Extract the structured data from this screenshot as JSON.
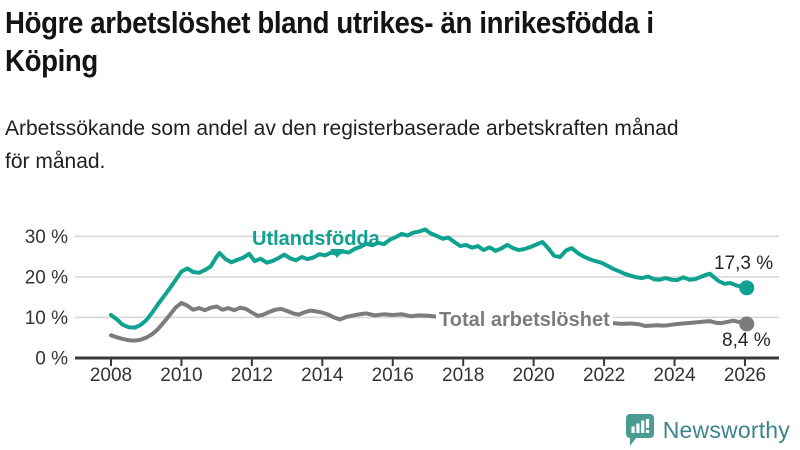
{
  "header": {
    "title_lines": [
      "Högre arbetslöshet bland utrikes- än inrikesfödda i",
      "Köping"
    ],
    "subtitle_lines": [
      "Arbetssökande som andel av den registerbaserade arbetskraften månad",
      "för månad."
    ]
  },
  "chart_data": {
    "type": "line",
    "title": "Högre arbetslöshet bland utrikes- än inrikesfödda i Köping",
    "subtitle": "Arbetssökande som andel av den registerbaserade arbetskraften månad för månad.",
    "xlabel": "",
    "ylabel": "",
    "grid": "horizontal",
    "x_axis": {
      "ticks": [
        2008,
        2010,
        2012,
        2014,
        2016,
        2018,
        2020,
        2022,
        2024,
        2026
      ],
      "range": [
        2008,
        2026.1
      ]
    },
    "y_axis": {
      "tick_values": [
        0,
        10,
        20,
        30
      ],
      "tick_labels": [
        "0 %",
        "10 %",
        "20 %",
        "30 %"
      ],
      "range": [
        0,
        33
      ],
      "unit": "%"
    },
    "series": [
      {
        "name": "Utlandsfödda",
        "color": "#10a291",
        "end_value": 17.3,
        "end_label": "17,3 %",
        "points": [
          [
            2008.0,
            10.6
          ],
          [
            2008.17,
            9.5
          ],
          [
            2008.33,
            8.2
          ],
          [
            2008.5,
            7.6
          ],
          [
            2008.67,
            7.5
          ],
          [
            2008.83,
            8.1
          ],
          [
            2009.0,
            9.3
          ],
          [
            2009.17,
            11.2
          ],
          [
            2009.33,
            13.2
          ],
          [
            2009.5,
            15.2
          ],
          [
            2009.67,
            17.2
          ],
          [
            2009.83,
            19.2
          ],
          [
            2010.0,
            21.3
          ],
          [
            2010.17,
            22.1
          ],
          [
            2010.33,
            21.2
          ],
          [
            2010.5,
            21.0
          ],
          [
            2010.67,
            21.7
          ],
          [
            2010.83,
            22.6
          ],
          [
            2011.0,
            25.0
          ],
          [
            2011.08,
            25.9
          ],
          [
            2011.25,
            24.4
          ],
          [
            2011.42,
            23.6
          ],
          [
            2011.58,
            24.2
          ],
          [
            2011.75,
            24.7
          ],
          [
            2011.92,
            25.7
          ],
          [
            2012.08,
            23.9
          ],
          [
            2012.25,
            24.5
          ],
          [
            2012.42,
            23.5
          ],
          [
            2012.58,
            23.9
          ],
          [
            2012.75,
            24.6
          ],
          [
            2012.92,
            25.5
          ],
          [
            2013.08,
            24.6
          ],
          [
            2013.25,
            24.1
          ],
          [
            2013.42,
            24.9
          ],
          [
            2013.58,
            24.4
          ],
          [
            2013.75,
            24.8
          ],
          [
            2013.92,
            25.6
          ],
          [
            2014.08,
            25.3
          ],
          [
            2014.25,
            26.0
          ],
          [
            2014.42,
            25.7
          ],
          [
            2014.58,
            26.3
          ],
          [
            2014.75,
            26.0
          ],
          [
            2014.92,
            26.9
          ],
          [
            2015.08,
            27.4
          ],
          [
            2015.25,
            28.2
          ],
          [
            2015.42,
            27.8
          ],
          [
            2015.58,
            28.4
          ],
          [
            2015.75,
            28.1
          ],
          [
            2015.92,
            29.2
          ],
          [
            2016.08,
            29.8
          ],
          [
            2016.25,
            30.6
          ],
          [
            2016.42,
            30.2
          ],
          [
            2016.58,
            30.9
          ],
          [
            2016.75,
            31.2
          ],
          [
            2016.92,
            31.7
          ],
          [
            2017.08,
            30.7
          ],
          [
            2017.25,
            30.1
          ],
          [
            2017.42,
            29.4
          ],
          [
            2017.58,
            29.7
          ],
          [
            2017.75,
            28.6
          ],
          [
            2017.92,
            27.6
          ],
          [
            2018.08,
            27.9
          ],
          [
            2018.25,
            27.2
          ],
          [
            2018.42,
            27.6
          ],
          [
            2018.58,
            26.6
          ],
          [
            2018.75,
            27.3
          ],
          [
            2018.92,
            26.4
          ],
          [
            2019.08,
            27.0
          ],
          [
            2019.25,
            27.9
          ],
          [
            2019.42,
            27.1
          ],
          [
            2019.58,
            26.6
          ],
          [
            2019.75,
            26.9
          ],
          [
            2019.92,
            27.4
          ],
          [
            2020.08,
            28.0
          ],
          [
            2020.25,
            28.6
          ],
          [
            2020.42,
            27.0
          ],
          [
            2020.58,
            25.2
          ],
          [
            2020.75,
            24.9
          ],
          [
            2020.92,
            26.5
          ],
          [
            2021.08,
            27.1
          ],
          [
            2021.25,
            25.9
          ],
          [
            2021.42,
            25.0
          ],
          [
            2021.58,
            24.4
          ],
          [
            2021.75,
            23.9
          ],
          [
            2021.92,
            23.5
          ],
          [
            2022.08,
            22.8
          ],
          [
            2022.25,
            22.0
          ],
          [
            2022.42,
            21.4
          ],
          [
            2022.58,
            20.8
          ],
          [
            2022.75,
            20.3
          ],
          [
            2022.92,
            19.9
          ],
          [
            2023.08,
            19.7
          ],
          [
            2023.25,
            20.1
          ],
          [
            2023.42,
            19.4
          ],
          [
            2023.58,
            19.3
          ],
          [
            2023.75,
            19.7
          ],
          [
            2023.92,
            19.3
          ],
          [
            2024.08,
            19.2
          ],
          [
            2024.25,
            19.9
          ],
          [
            2024.42,
            19.3
          ],
          [
            2024.58,
            19.4
          ],
          [
            2024.75,
            20.0
          ],
          [
            2024.92,
            20.6
          ],
          [
            2025.0,
            20.8
          ],
          [
            2025.08,
            20.2
          ],
          [
            2025.25,
            19.0
          ],
          [
            2025.42,
            18.3
          ],
          [
            2025.58,
            18.5
          ],
          [
            2025.75,
            17.9
          ],
          [
            2025.92,
            17.6
          ],
          [
            2026.05,
            17.3
          ]
        ]
      },
      {
        "name": "Total arbetslöshet",
        "color": "#7c7c7c",
        "end_value": 8.4,
        "end_label": "8,4 %",
        "points": [
          [
            2008.0,
            5.6
          ],
          [
            2008.17,
            5.1
          ],
          [
            2008.33,
            4.7
          ],
          [
            2008.5,
            4.4
          ],
          [
            2008.67,
            4.3
          ],
          [
            2008.83,
            4.5
          ],
          [
            2009.0,
            5.0
          ],
          [
            2009.17,
            5.9
          ],
          [
            2009.33,
            7.1
          ],
          [
            2009.5,
            8.8
          ],
          [
            2009.67,
            10.6
          ],
          [
            2009.83,
            12.4
          ],
          [
            2010.0,
            13.6
          ],
          [
            2010.17,
            12.9
          ],
          [
            2010.33,
            11.9
          ],
          [
            2010.5,
            12.3
          ],
          [
            2010.67,
            11.8
          ],
          [
            2010.83,
            12.4
          ],
          [
            2011.0,
            12.7
          ],
          [
            2011.17,
            11.9
          ],
          [
            2011.33,
            12.3
          ],
          [
            2011.5,
            11.8
          ],
          [
            2011.67,
            12.4
          ],
          [
            2011.83,
            12.1
          ],
          [
            2012.0,
            11.2
          ],
          [
            2012.17,
            10.4
          ],
          [
            2012.33,
            10.7
          ],
          [
            2012.5,
            11.4
          ],
          [
            2012.67,
            11.9
          ],
          [
            2012.83,
            12.1
          ],
          [
            2013.0,
            11.6
          ],
          [
            2013.17,
            11.0
          ],
          [
            2013.33,
            10.7
          ],
          [
            2013.5,
            11.3
          ],
          [
            2013.67,
            11.7
          ],
          [
            2013.83,
            11.5
          ],
          [
            2014.0,
            11.2
          ],
          [
            2014.17,
            10.7
          ],
          [
            2014.33,
            10.0
          ],
          [
            2014.5,
            9.5
          ],
          [
            2014.67,
            10.1
          ],
          [
            2014.83,
            10.4
          ],
          [
            2015.0,
            10.7
          ],
          [
            2015.25,
            11.0
          ],
          [
            2015.5,
            10.5
          ],
          [
            2015.75,
            10.8
          ],
          [
            2016.0,
            10.6
          ],
          [
            2016.25,
            10.8
          ],
          [
            2016.5,
            10.3
          ],
          [
            2016.75,
            10.5
          ],
          [
            2017.0,
            10.4
          ],
          [
            2017.25,
            10.2
          ],
          [
            2017.5,
            10.1
          ],
          [
            2017.75,
            9.9
          ],
          [
            2018.0,
            9.7
          ],
          [
            2018.25,
            9.6
          ],
          [
            2018.5,
            9.8
          ],
          [
            2018.75,
            9.5
          ],
          [
            2019.0,
            9.4
          ],
          [
            2019.25,
            9.6
          ],
          [
            2019.5,
            9.4
          ],
          [
            2019.75,
            9.3
          ],
          [
            2020.0,
            9.6
          ],
          [
            2020.25,
            10.4
          ],
          [
            2020.5,
            10.9
          ],
          [
            2020.75,
            10.6
          ],
          [
            2021.0,
            10.2
          ],
          [
            2021.25,
            9.8
          ],
          [
            2021.5,
            9.4
          ],
          [
            2021.75,
            9.0
          ],
          [
            2022.0,
            8.8
          ],
          [
            2022.25,
            8.6
          ],
          [
            2022.5,
            8.4
          ],
          [
            2022.75,
            8.5
          ],
          [
            2023.0,
            8.3
          ],
          [
            2023.17,
            7.9
          ],
          [
            2023.33,
            8.0
          ],
          [
            2023.5,
            8.1
          ],
          [
            2023.67,
            8.0
          ],
          [
            2023.83,
            8.1
          ],
          [
            2024.0,
            8.3
          ],
          [
            2024.25,
            8.5
          ],
          [
            2024.5,
            8.7
          ],
          [
            2024.75,
            8.9
          ],
          [
            2025.0,
            9.1
          ],
          [
            2025.17,
            8.7
          ],
          [
            2025.33,
            8.6
          ],
          [
            2025.5,
            8.9
          ],
          [
            2025.67,
            9.2
          ],
          [
            2025.83,
            8.9
          ],
          [
            2026.05,
            8.4
          ]
        ]
      }
    ],
    "annotations": {
      "series_label_marker": {
        "series": "Utlandsfödda",
        "year": 2014.42,
        "shape": "triangle-down"
      }
    }
  },
  "footer": {
    "brand": "Newsworthy"
  },
  "colors": {
    "accent_teal": "#10a291",
    "series_gray": "#7c7c7c",
    "grid": "#d8d8d8",
    "axis": "#3a3a3a",
    "axis_text": "#333333",
    "logo_icon": "#4a9c92",
    "logo_text": "#3b8490"
  }
}
